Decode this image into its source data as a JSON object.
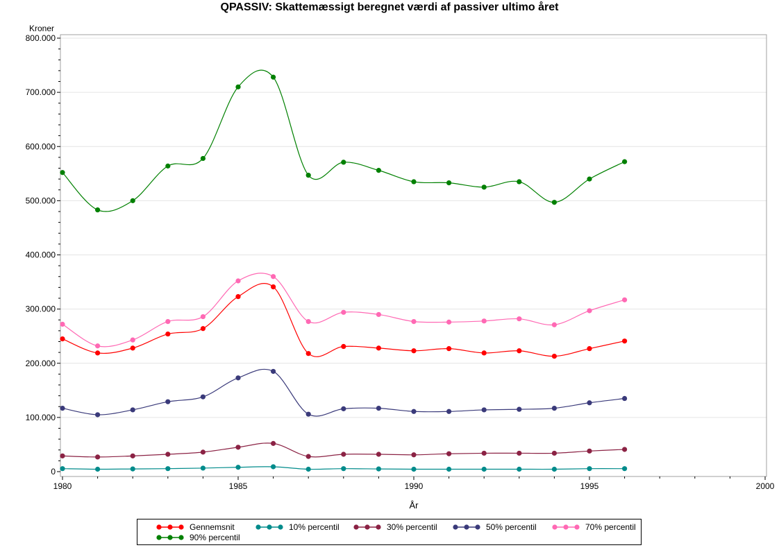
{
  "chart_data": {
    "type": "line",
    "title": "QPASSIV:  Skattemæssigt beregnet værdi af passiver ultimo året",
    "xlabel": "År",
    "ylabel": "Kroner",
    "xlim": [
      1980,
      2000
    ],
    "ylim": [
      0,
      800000
    ],
    "x_ticks": [
      1980,
      1985,
      1990,
      1995,
      2000
    ],
    "y_ticks": [
      0,
      100000,
      200000,
      300000,
      400000,
      500000,
      600000,
      700000,
      800000
    ],
    "y_tick_labels": [
      "0",
      "100.000",
      "200.000",
      "300.000",
      "400.000",
      "500.000",
      "600.000",
      "700.000",
      "800.000"
    ],
    "x_tick_labels": [
      "1980",
      "1985",
      "1990",
      "1995",
      "2000"
    ],
    "grid": "horizontal",
    "legend_position": "bottom",
    "x": [
      1980,
      1981,
      1982,
      1983,
      1984,
      1985,
      1986,
      1987,
      1988,
      1989,
      1990,
      1991,
      1992,
      1993,
      1994,
      1995,
      1996
    ],
    "series": [
      {
        "name": "Gennemsnit",
        "color": "#ff0000",
        "values": [
          245000,
          219000,
          228000,
          254000,
          264000,
          323000,
          341000,
          218000,
          231000,
          228000,
          223000,
          227000,
          219000,
          223000,
          213000,
          227000,
          241000
        ]
      },
      {
        "name": "10% percentil",
        "color": "#008b8b",
        "values": [
          5500,
          4500,
          5000,
          5500,
          6500,
          8000,
          9000,
          4500,
          5500,
          5000,
          4500,
          4500,
          4500,
          4500,
          4500,
          5500,
          5500
        ]
      },
      {
        "name": "30% percentil",
        "color": "#8b2244",
        "values": [
          29000,
          27000,
          29000,
          32000,
          36000,
          45000,
          52000,
          28000,
          32000,
          32000,
          31000,
          33000,
          34000,
          34000,
          34000,
          38000,
          41000
        ]
      },
      {
        "name": "50% percentil",
        "color": "#3a3a7a",
        "values": [
          117000,
          105000,
          114000,
          129000,
          138000,
          173000,
          185000,
          106000,
          116000,
          117000,
          111000,
          111000,
          114000,
          115000,
          117000,
          127000,
          135000
        ]
      },
      {
        "name": "70% percentil",
        "color": "#ff69b4",
        "values": [
          272000,
          232000,
          243000,
          277000,
          286000,
          352000,
          360000,
          277000,
          294000,
          290000,
          277000,
          276000,
          278000,
          282000,
          271000,
          297000,
          317000
        ]
      },
      {
        "name": "90% percentil",
        "color": "#008000",
        "values": [
          552000,
          483000,
          500000,
          564000,
          578000,
          710000,
          728000,
          547000,
          571000,
          556000,
          535000,
          533000,
          525000,
          535000,
          497000,
          540000,
          572000
        ]
      }
    ]
  }
}
